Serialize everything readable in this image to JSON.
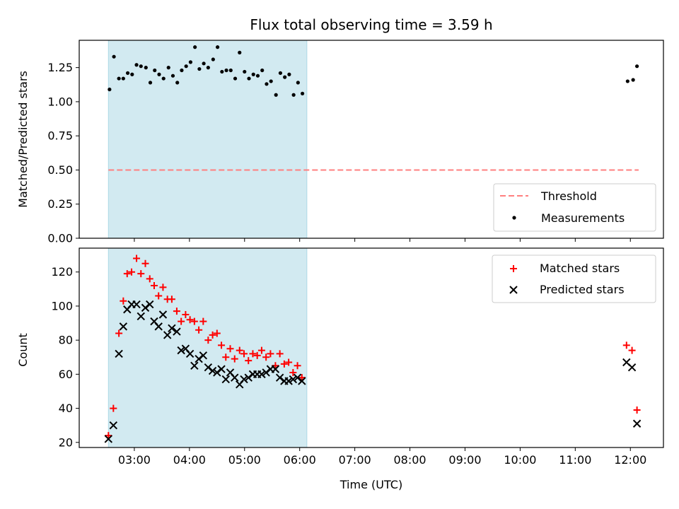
{
  "chart_data": [
    {
      "type": "scatter",
      "title": "Flux total observing time = 3.59 h",
      "xlabel": "",
      "ylabel": "Matched/Predicted stars",
      "ylim": [
        0.0,
        1.45
      ],
      "xlim_hours": [
        2.0,
        12.6
      ],
      "yticks": [
        "0.00",
        "0.25",
        "0.50",
        "0.75",
        "1.00",
        "1.25"
      ],
      "shaded_span_hours": [
        2.53,
        6.13
      ],
      "shaded_color": "#add8e6",
      "legend_position": "lower right",
      "threshold": {
        "name": "Threshold",
        "value": 0.5,
        "color": "#ff7f7f",
        "x_range_hours": [
          2.53,
          12.15
        ]
      },
      "series": [
        {
          "name": "Measurements",
          "color": "#000000",
          "marker": "dot",
          "points": [
            [
              2.55,
              1.09
            ],
            [
              2.63,
              1.33
            ],
            [
              2.72,
              1.17
            ],
            [
              2.8,
              1.17
            ],
            [
              2.88,
              1.21
            ],
            [
              2.96,
              1.2
            ],
            [
              3.04,
              1.27
            ],
            [
              3.12,
              1.26
            ],
            [
              3.21,
              1.25
            ],
            [
              3.29,
              1.14
            ],
            [
              3.37,
              1.23
            ],
            [
              3.45,
              1.2
            ],
            [
              3.53,
              1.17
            ],
            [
              3.62,
              1.25
            ],
            [
              3.7,
              1.19
            ],
            [
              3.78,
              1.14
            ],
            [
              3.86,
              1.23
            ],
            [
              3.94,
              1.26
            ],
            [
              4.02,
              1.29
            ],
            [
              4.1,
              1.4
            ],
            [
              4.18,
              1.24
            ],
            [
              4.26,
              1.28
            ],
            [
              4.34,
              1.25
            ],
            [
              4.43,
              1.31
            ],
            [
              4.51,
              1.4
            ],
            [
              4.59,
              1.22
            ],
            [
              4.67,
              1.23
            ],
            [
              4.75,
              1.23
            ],
            [
              4.83,
              1.17
            ],
            [
              4.91,
              1.36
            ],
            [
              5.0,
              1.22
            ],
            [
              5.08,
              1.17
            ],
            [
              5.16,
              1.2
            ],
            [
              5.24,
              1.19
            ],
            [
              5.32,
              1.23
            ],
            [
              5.4,
              1.13
            ],
            [
              5.48,
              1.15
            ],
            [
              5.57,
              1.05
            ],
            [
              5.65,
              1.21
            ],
            [
              5.73,
              1.18
            ],
            [
              5.81,
              1.2
            ],
            [
              5.89,
              1.05
            ],
            [
              5.97,
              1.14
            ],
            [
              6.05,
              1.06
            ],
            [
              11.95,
              1.15
            ],
            [
              12.05,
              1.16
            ],
            [
              12.12,
              1.26
            ]
          ]
        }
      ]
    },
    {
      "type": "scatter",
      "title": "",
      "xlabel": "Time (UTC)",
      "ylabel": "Count",
      "ylim": [
        17,
        134
      ],
      "xlim_hours": [
        2.0,
        12.6
      ],
      "yticks": [
        "20",
        "40",
        "60",
        "80",
        "100",
        "120"
      ],
      "xticks": [
        "03:00",
        "04:00",
        "05:00",
        "06:00",
        "07:00",
        "08:00",
        "09:00",
        "10:00",
        "11:00",
        "12:00"
      ],
      "shaded_span_hours": [
        2.53,
        6.13
      ],
      "shaded_color": "#add8e6",
      "legend_position": "upper right",
      "series": [
        {
          "name": "Matched stars",
          "color": "#ff0000",
          "marker": "plus",
          "points": [
            [
              2.53,
              24
            ],
            [
              2.62,
              40
            ],
            [
              2.72,
              84
            ],
            [
              2.8,
              103
            ],
            [
              2.87,
              119
            ],
            [
              2.95,
              120
            ],
            [
              3.04,
              128
            ],
            [
              3.12,
              119
            ],
            [
              3.2,
              125
            ],
            [
              3.28,
              116
            ],
            [
              3.36,
              112
            ],
            [
              3.44,
              106
            ],
            [
              3.52,
              111
            ],
            [
              3.6,
              104
            ],
            [
              3.68,
              104
            ],
            [
              3.77,
              97
            ],
            [
              3.85,
              91
            ],
            [
              3.93,
              95
            ],
            [
              4.01,
              92
            ],
            [
              4.09,
              91
            ],
            [
              4.17,
              86
            ],
            [
              4.25,
              91
            ],
            [
              4.34,
              80
            ],
            [
              4.42,
              83
            ],
            [
              4.5,
              84
            ],
            [
              4.58,
              77
            ],
            [
              4.66,
              70
            ],
            [
              4.74,
              75
            ],
            [
              4.82,
              69
            ],
            [
              4.91,
              74
            ],
            [
              4.99,
              72
            ],
            [
              5.07,
              68
            ],
            [
              5.15,
              72
            ],
            [
              5.23,
              71
            ],
            [
              5.31,
              74
            ],
            [
              5.39,
              70
            ],
            [
              5.47,
              72
            ],
            [
              5.56,
              65
            ],
            [
              5.64,
              72
            ],
            [
              5.72,
              66
            ],
            [
              5.8,
              67
            ],
            [
              5.88,
              61
            ],
            [
              5.96,
              65
            ],
            [
              6.04,
              58
            ],
            [
              11.93,
              77
            ],
            [
              12.03,
              74
            ],
            [
              12.12,
              39
            ]
          ]
        },
        {
          "name": "Predicted stars",
          "color": "#000000",
          "marker": "x",
          "points": [
            [
              2.53,
              22
            ],
            [
              2.62,
              30
            ],
            [
              2.72,
              72
            ],
            [
              2.8,
              88
            ],
            [
              2.87,
              98
            ],
            [
              2.95,
              101
            ],
            [
              3.04,
              101
            ],
            [
              3.12,
              94
            ],
            [
              3.2,
              99
            ],
            [
              3.28,
              101
            ],
            [
              3.36,
              91
            ],
            [
              3.44,
              88
            ],
            [
              3.52,
              95
            ],
            [
              3.6,
              83
            ],
            [
              3.68,
              87
            ],
            [
              3.77,
              85
            ],
            [
              3.85,
              74
            ],
            [
              3.93,
              75
            ],
            [
              4.01,
              72
            ],
            [
              4.09,
              65
            ],
            [
              4.17,
              69
            ],
            [
              4.25,
              71
            ],
            [
              4.34,
              64
            ],
            [
              4.42,
              62
            ],
            [
              4.5,
              61
            ],
            [
              4.58,
              63
            ],
            [
              4.66,
              57
            ],
            [
              4.74,
              61
            ],
            [
              4.82,
              58
            ],
            [
              4.91,
              54
            ],
            [
              4.99,
              57
            ],
            [
              5.07,
              58
            ],
            [
              5.15,
              60
            ],
            [
              5.23,
              60
            ],
            [
              5.31,
              60
            ],
            [
              5.39,
              61
            ],
            [
              5.47,
              63
            ],
            [
              5.56,
              63
            ],
            [
              5.64,
              58
            ],
            [
              5.72,
              56
            ],
            [
              5.8,
              56
            ],
            [
              5.88,
              57
            ],
            [
              5.96,
              58
            ],
            [
              6.04,
              56
            ],
            [
              11.93,
              67
            ],
            [
              12.03,
              64
            ],
            [
              12.12,
              31
            ]
          ]
        }
      ]
    }
  ]
}
